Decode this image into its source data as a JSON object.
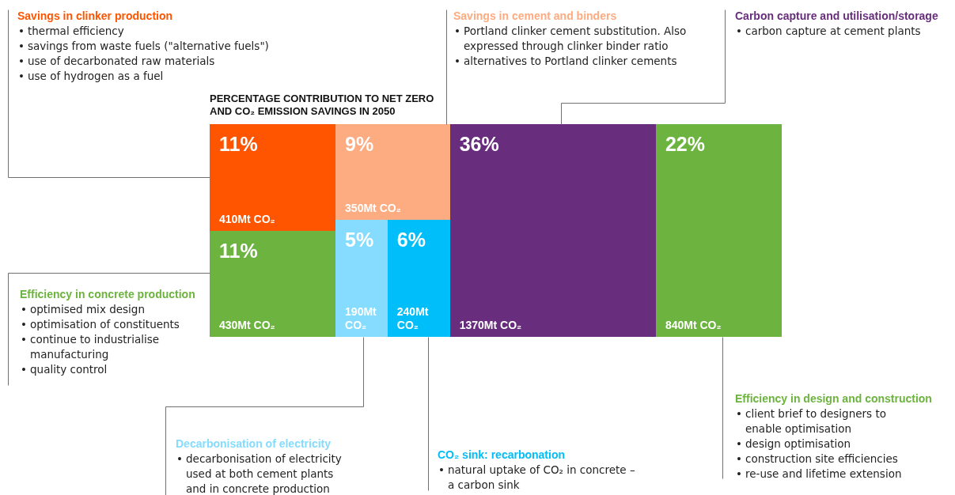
{
  "chart_data": {
    "type": "other",
    "title": "PERCENTAGE CONTRIBUTION TO NET ZERO AND CO₂ EMISSION SAVINGS IN 2050",
    "categories": [
      null,
      null,
      null,
      null,
      null,
      null,
      null
    ],
    "series": [
      {
        "colors": [
          "#ff5500",
          "#fdab80",
          "#682d7c",
          "#6db33f",
          "#6db33f",
          "#85dcff",
          "#00bef9"
        ],
        "values": [
          11,
          9,
          36,
          22,
          11,
          5,
          6
        ],
        "value_labels": [
          "11%",
          "9%",
          "36%",
          "22%",
          "11%",
          "5%",
          "6%"
        ]
      }
    ],
    "annotations": [
      "Savings in clinker production\n• thermal efficiency\n• savings from waste fuels (\"alternative fuels\")\n• use of decarbonated raw materials\n• use of hydrogen as a fuel",
      "Savings in cement and binders\n• Portland clinker cement substitution. Also expressed through clinker binder ratio\n• alternatives to Portland clinker cements",
      "Carbon capture and utilisation/storage\n• carbon capture at cement plants",
      "Efficiency in design and construction\n• client brief to designers to enable optimisation\n• design optimisation\n• construction site efficiencies\n• re-use and lifetime extension",
      "Efficiency in concrete production\n• optimised mix design\n• optimisation of constituents\n• continue to industrialise manufacturing\n• quality control",
      "Decarbonisation of electricity\n• decarbonisation of electricity used at both cement plants and in concrete production",
      "CO₂ sink: recarbonation\n• natural uptake of CO₂ in concrete – a carbon sink",
      "410Mt CO₂",
      "350Mt CO₂",
      "1370Mt CO₂",
      "840Mt CO₂",
      "430Mt CO₂",
      "190Mt CO₂",
      "240Mt CO₂"
    ]
  }
}
